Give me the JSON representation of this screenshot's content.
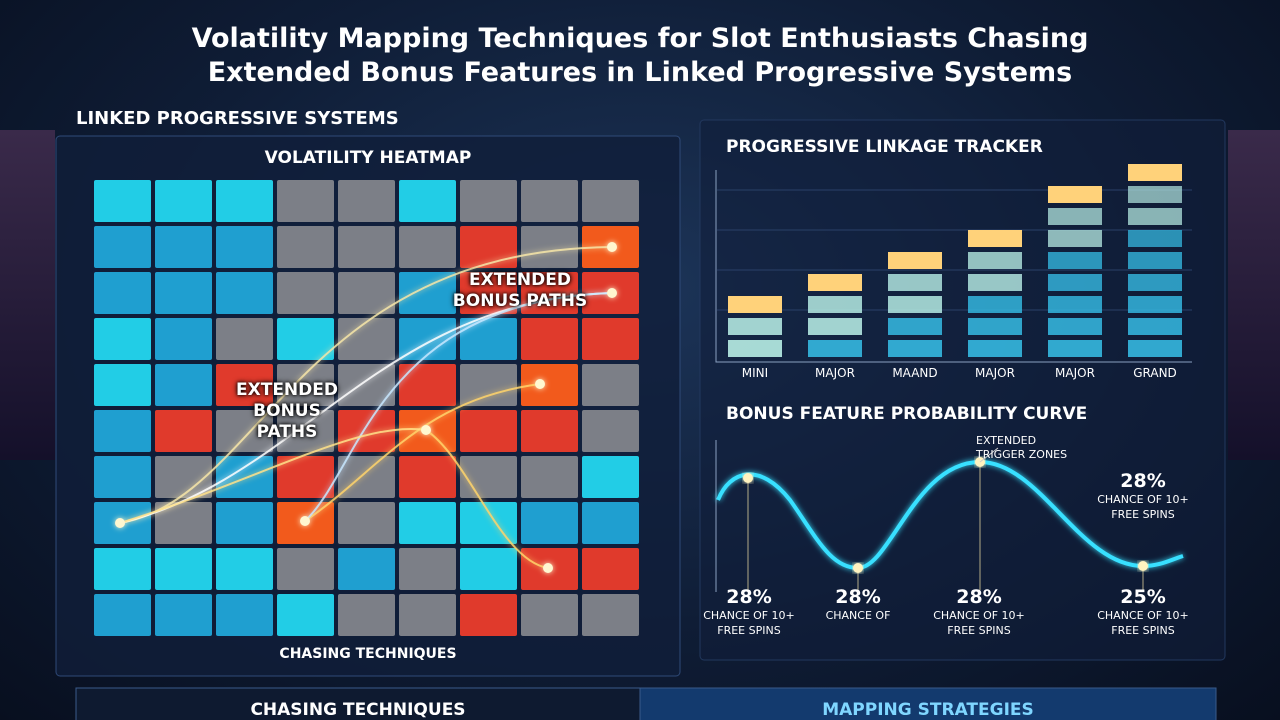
{
  "header": {
    "title": "Volatility Mapping Techniques for Slot Enthusiasts Chasing Extended Bonus Features in Linked Progressive Systems"
  },
  "left_panel": {
    "section_label": "LINKED PROGRESSIVE SYSTEMS",
    "title": "VOLATILITY HEATMAP",
    "annotations": [
      "EXTENDED BONUS PATHS",
      "EXTENDED BONUS PATHS"
    ],
    "footer": "CHASING TECHNIQUES"
  },
  "tracker": {
    "title": "PROGRESSIVE LINKAGE TRACKER",
    "labels": [
      "MINI",
      "MAJOR",
      "MAAND",
      "MAJOR",
      "MAJOR",
      "GRAND"
    ]
  },
  "curve": {
    "title": "BONUS FEATURE PROBABILITY CURVE",
    "annotation": "EXTENDED TRIGGER ZONES",
    "callouts": [
      {
        "value": "28%",
        "text": "CHANCE OF 10+ FREE SPINS"
      },
      {
        "value": "28%",
        "text": "CHANCE OF 10+ FREE SPINS"
      },
      {
        "value": "28%",
        "text": "CHANCE OF"
      },
      {
        "value": "28%",
        "text": "CHANCE OF 10+ FREE SPINS"
      },
      {
        "value": "25%",
        "text": "CHANCE OF 10+ FREE SPINS"
      }
    ]
  },
  "tabs": [
    "CHASING TECHNIQUES",
    "MAPPING STRATEGIES"
  ]
}
